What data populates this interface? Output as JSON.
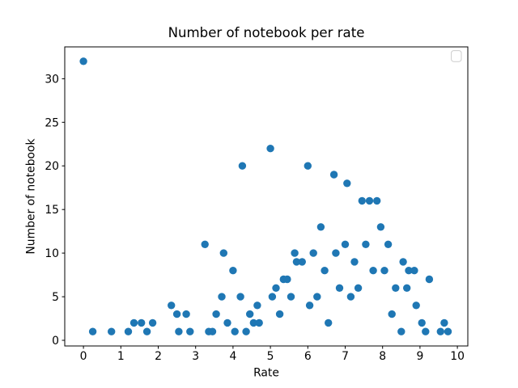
{
  "chart_data": {
    "type": "scatter",
    "title": "Number of notebook per rate",
    "xlabel": "Rate",
    "ylabel": "Number of notebook",
    "xlim": [
      -0.5,
      10.28
    ],
    "ylim": [
      -0.65,
      33.65
    ],
    "x_ticks": [
      0,
      1,
      2,
      3,
      4,
      5,
      6,
      7,
      8,
      9,
      10
    ],
    "y_ticks": [
      0,
      5,
      10,
      15,
      20,
      25,
      30
    ],
    "grid": false,
    "marker_color": "#1f77b4",
    "legend": {
      "visible": true,
      "position": "upper right",
      "entries": []
    },
    "points": [
      [
        0.0,
        32
      ],
      [
        0.25,
        1
      ],
      [
        0.75,
        1
      ],
      [
        1.2,
        1
      ],
      [
        1.35,
        2
      ],
      [
        1.55,
        2
      ],
      [
        1.7,
        1
      ],
      [
        1.85,
        2
      ],
      [
        2.35,
        4
      ],
      [
        2.5,
        3
      ],
      [
        2.55,
        1
      ],
      [
        2.75,
        3
      ],
      [
        2.85,
        1
      ],
      [
        3.25,
        11
      ],
      [
        3.35,
        1
      ],
      [
        3.45,
        1
      ],
      [
        3.55,
        3
      ],
      [
        3.7,
        5
      ],
      [
        3.75,
        10
      ],
      [
        3.85,
        2
      ],
      [
        4.0,
        8
      ],
      [
        4.05,
        1
      ],
      [
        4.2,
        5
      ],
      [
        4.25,
        20
      ],
      [
        4.35,
        1
      ],
      [
        4.45,
        3
      ],
      [
        4.55,
        2
      ],
      [
        4.65,
        4
      ],
      [
        4.7,
        2
      ],
      [
        5.0,
        22
      ],
      [
        5.05,
        5
      ],
      [
        5.15,
        6
      ],
      [
        5.25,
        3
      ],
      [
        5.35,
        7
      ],
      [
        5.45,
        7
      ],
      [
        5.55,
        5
      ],
      [
        5.65,
        10
      ],
      [
        5.7,
        9
      ],
      [
        5.85,
        9
      ],
      [
        6.0,
        20
      ],
      [
        6.05,
        4
      ],
      [
        6.15,
        10
      ],
      [
        6.25,
        5
      ],
      [
        6.35,
        13
      ],
      [
        6.45,
        8
      ],
      [
        6.55,
        2
      ],
      [
        6.7,
        19
      ],
      [
        6.75,
        10
      ],
      [
        6.85,
        6
      ],
      [
        7.0,
        11
      ],
      [
        7.05,
        18
      ],
      [
        7.15,
        5
      ],
      [
        7.25,
        9
      ],
      [
        7.35,
        6
      ],
      [
        7.45,
        16
      ],
      [
        7.55,
        11
      ],
      [
        7.65,
        16
      ],
      [
        7.75,
        8
      ],
      [
        7.85,
        16
      ],
      [
        7.95,
        13
      ],
      [
        8.05,
        8
      ],
      [
        8.15,
        11
      ],
      [
        8.25,
        3
      ],
      [
        8.35,
        6
      ],
      [
        8.5,
        1
      ],
      [
        8.55,
        9
      ],
      [
        8.65,
        6
      ],
      [
        8.7,
        8
      ],
      [
        8.85,
        8
      ],
      [
        8.9,
        4
      ],
      [
        9.05,
        2
      ],
      [
        9.15,
        1
      ],
      [
        9.25,
        7
      ],
      [
        9.55,
        1
      ],
      [
        9.65,
        2
      ],
      [
        9.75,
        1
      ]
    ]
  }
}
